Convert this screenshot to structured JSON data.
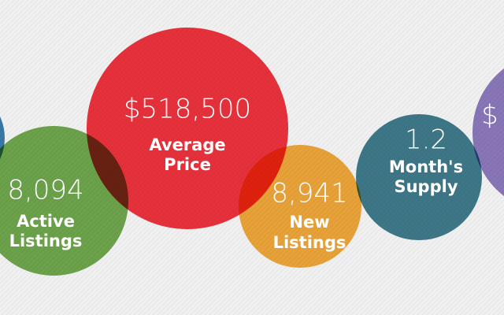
{
  "bubbles": [
    {
      "value": "8,094",
      "label": [
        "Active",
        "Listings"
      ]
    },
    {
      "value": "$518,500",
      "label": [
        "Average",
        "Price"
      ]
    },
    {
      "value": "8,941",
      "label": [
        "New",
        "Listings"
      ]
    },
    {
      "value": "1.2",
      "label": [
        "Month's",
        "Supply"
      ]
    },
    {
      "value": "$"
    }
  ]
}
